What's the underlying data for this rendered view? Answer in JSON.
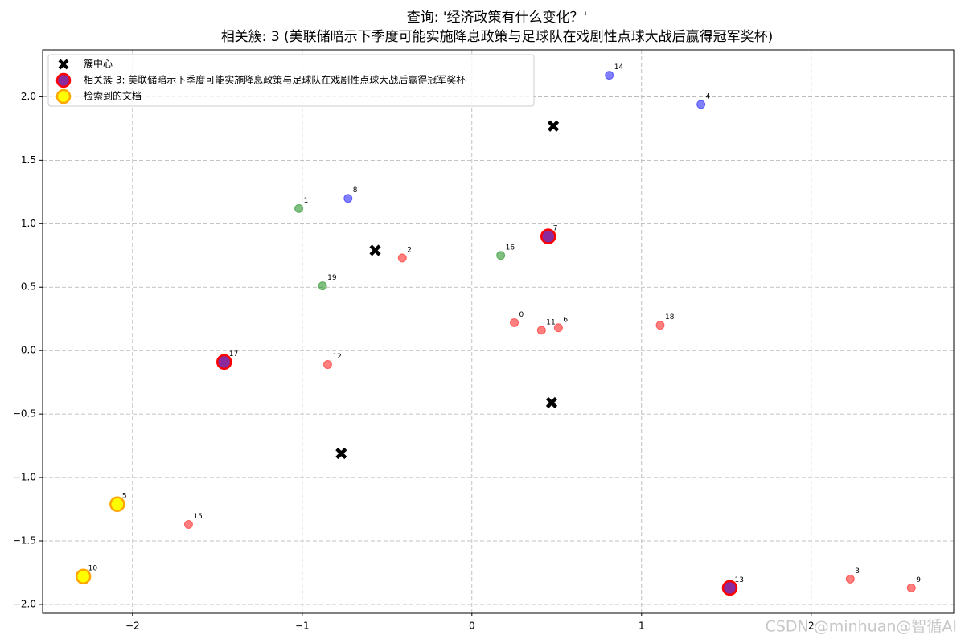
{
  "chart_data": {
    "type": "scatter",
    "title": "查询: '经济政策有什么变化？'",
    "subtitle": "相关簇: 3 (美联储暗示下季度可能实施降息政策与足球队在戏剧性点球大战后赢得冠军奖杯)",
    "xlim": [
      -2.53,
      2.84
    ],
    "ylim": [
      -2.07,
      2.37
    ],
    "xticks": [
      {
        "value": -2,
        "label": "−2"
      },
      {
        "value": -1,
        "label": "−1"
      },
      0,
      1,
      2
    ],
    "yticks": [
      {
        "value": -2,
        "label": "−2.0"
      },
      {
        "value": -1.5,
        "label": "−1.5"
      },
      {
        "value": -1,
        "label": "−1.0"
      },
      {
        "value": -0.5,
        "label": "−0.5"
      },
      {
        "value": 0,
        "label": "0.0"
      },
      {
        "value": 0.5,
        "label": "0.5"
      },
      {
        "value": 1,
        "label": "1.0"
      },
      {
        "value": 1.5,
        "label": "1.5"
      },
      {
        "value": 2,
        "label": "2.0"
      }
    ],
    "grid": true,
    "legend": "upper left",
    "alpha": 0.5,
    "points": {
      "labels": [
        "0",
        "1",
        "2",
        "3",
        "4",
        "5",
        "6",
        "7",
        "8",
        "9",
        "10",
        "11",
        "12",
        "13",
        "14",
        "15",
        "16",
        "17",
        "18",
        "19"
      ],
      "x": [
        0.25,
        -1.02,
        -0.41,
        2.23,
        1.35,
        -2.09,
        0.51,
        0.45,
        -0.73,
        2.59,
        -2.29,
        0.41,
        -0.85,
        1.52,
        0.81,
        -1.67,
        0.17,
        -1.46,
        1.11,
        -0.88
      ],
      "y": [
        0.22,
        1.12,
        0.73,
        -1.8,
        1.94,
        -1.21,
        0.18,
        0.9,
        1.2,
        -1.87,
        -1.78,
        0.16,
        -0.11,
        -1.87,
        2.17,
        -1.37,
        0.75,
        -0.09,
        0.2,
        0.51
      ],
      "colors": [
        "#ff0000",
        "#008000",
        "#ff0000",
        "#ff0000",
        "#0000ff",
        "#ff0000",
        "#ff0000",
        "#800080",
        "#0000ff",
        "#ff0000",
        "#ff0000",
        "#ff0000",
        "#ff0000",
        "#800080",
        "#0000ff",
        "#ff0000",
        "#008000",
        "#800080",
        "#ff0000",
        "#008000"
      ]
    },
    "series": [
      {
        "name": "簇中心",
        "marker": "x",
        "color": "#000000",
        "x": [
          0.48,
          -0.57,
          0.47,
          -0.77
        ],
        "y": [
          1.77,
          0.79,
          -0.41,
          -0.81
        ]
      },
      {
        "name": "相关簇 3: 美联储暗示下季度可能实施降息政策与足球队在戏剧性点球大战后赢得冠军奖杯",
        "marker": "circle",
        "color": "#8b2a9c",
        "edgecolor": "#ff0000",
        "x": [
          0.45,
          1.52,
          -1.46
        ],
        "y": [
          0.9,
          -1.87,
          -0.09
        ]
      },
      {
        "name": "检索到的文档",
        "marker": "circle",
        "color": "#ffff00",
        "edgecolor": "#ffa500",
        "x": [
          -2.09,
          -2.29
        ],
        "y": [
          -1.21,
          -1.78
        ]
      }
    ],
    "watermark": "CSDN @minhuan@智循AI"
  }
}
